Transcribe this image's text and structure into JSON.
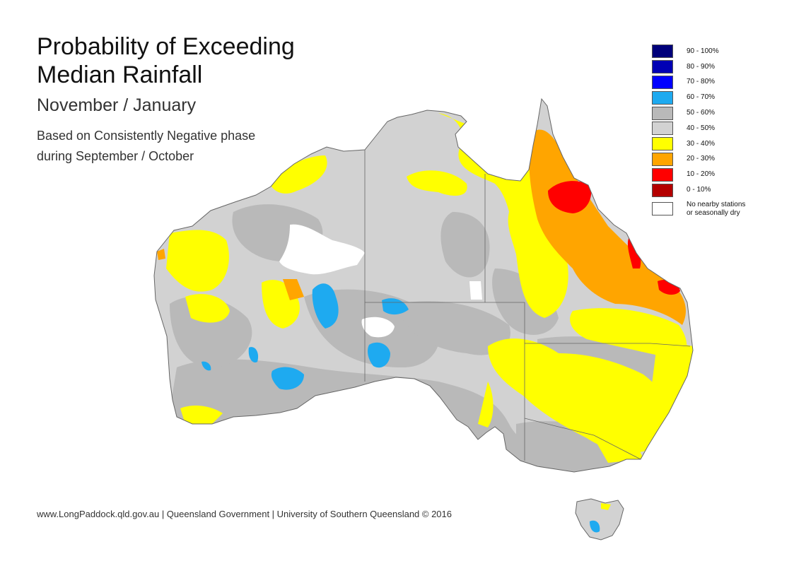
{
  "title_lines": [
    "Probability of Exceeding",
    "Median Rainfall"
  ],
  "subtitle": "November / January",
  "note_lines": [
    "Based on Consistently Negative phase",
    "during September / October"
  ],
  "footer": "www.LongPaddock.qld.gov.au | Queensland Government | University of Southern Queensland © 2016",
  "legend": [
    {
      "label": "90 - 100%",
      "color": "#00007a"
    },
    {
      "label": "80 - 90%",
      "color": "#0000b4"
    },
    {
      "label": "70 - 80%",
      "color": "#0000ff"
    },
    {
      "label": "60 - 70%",
      "color": "#1eaaf0"
    },
    {
      "label": "50 - 60%",
      "color": "#b9b9b9"
    },
    {
      "label": "40 - 50%",
      "color": "#d2d2d2"
    },
    {
      "label": "30 - 40%",
      "color": "#ffff00"
    },
    {
      "label": "20 - 30%",
      "color": "#ffa500"
    },
    {
      "label": "10 - 20%",
      "color": "#ff0000"
    },
    {
      "label": "0 - 10%",
      "color": "#b40000"
    }
  ],
  "legend_no_data": {
    "lines": [
      "No nearby stations",
      "or seasonally dry"
    ],
    "color": "#ffffff"
  },
  "colors": {
    "base": "#d2d2d2",
    "darker_grey": "#b9b9b9",
    "yellow": "#ffff00",
    "orange": "#ffa500",
    "red": "#ff0000",
    "blue": "#1eaaf0",
    "no_data": "#ffffff"
  }
}
